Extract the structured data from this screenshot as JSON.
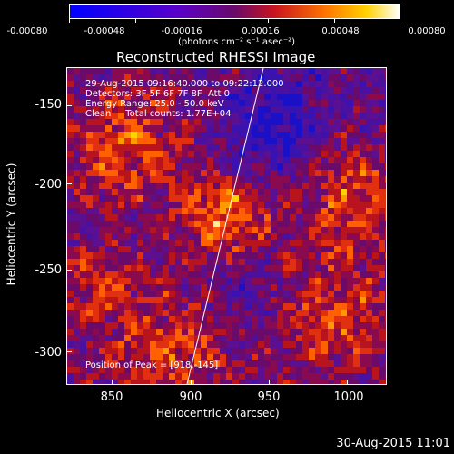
{
  "colorbar": {
    "ticks": [
      "-0.00080",
      "-0.00048",
      "-0.00016",
      "0.00016",
      "0.00048",
      "0.00080"
    ],
    "units": "(photons cm⁻² s⁻¹ asec⁻²)"
  },
  "title": "Reconstructed RHESSI Image",
  "info": {
    "line1": "29-Aug-2015 09:16:40.000 to 09:22:12.000",
    "line2": "Detectors: 3F 5F 6F 7F 8F  Att 0",
    "line3": "Energy Range: 25.0 - 50.0 keV",
    "line4": "Clean     Total counts: 1.77E+04",
    "peak": "Position of Peak = [918,-145]"
  },
  "axes": {
    "xlabel": "Heliocentric X (arcsec)",
    "ylabel": "Heliocentric Y (arcsec)",
    "xticks": [
      "850",
      "900",
      "950",
      "1000"
    ],
    "yticks": [
      "-150",
      "-200",
      "-250",
      "-300"
    ]
  },
  "timestamp": "30-Aug-2015 11:01",
  "colors": {
    "background": "#000000",
    "text": "#ffffff"
  }
}
